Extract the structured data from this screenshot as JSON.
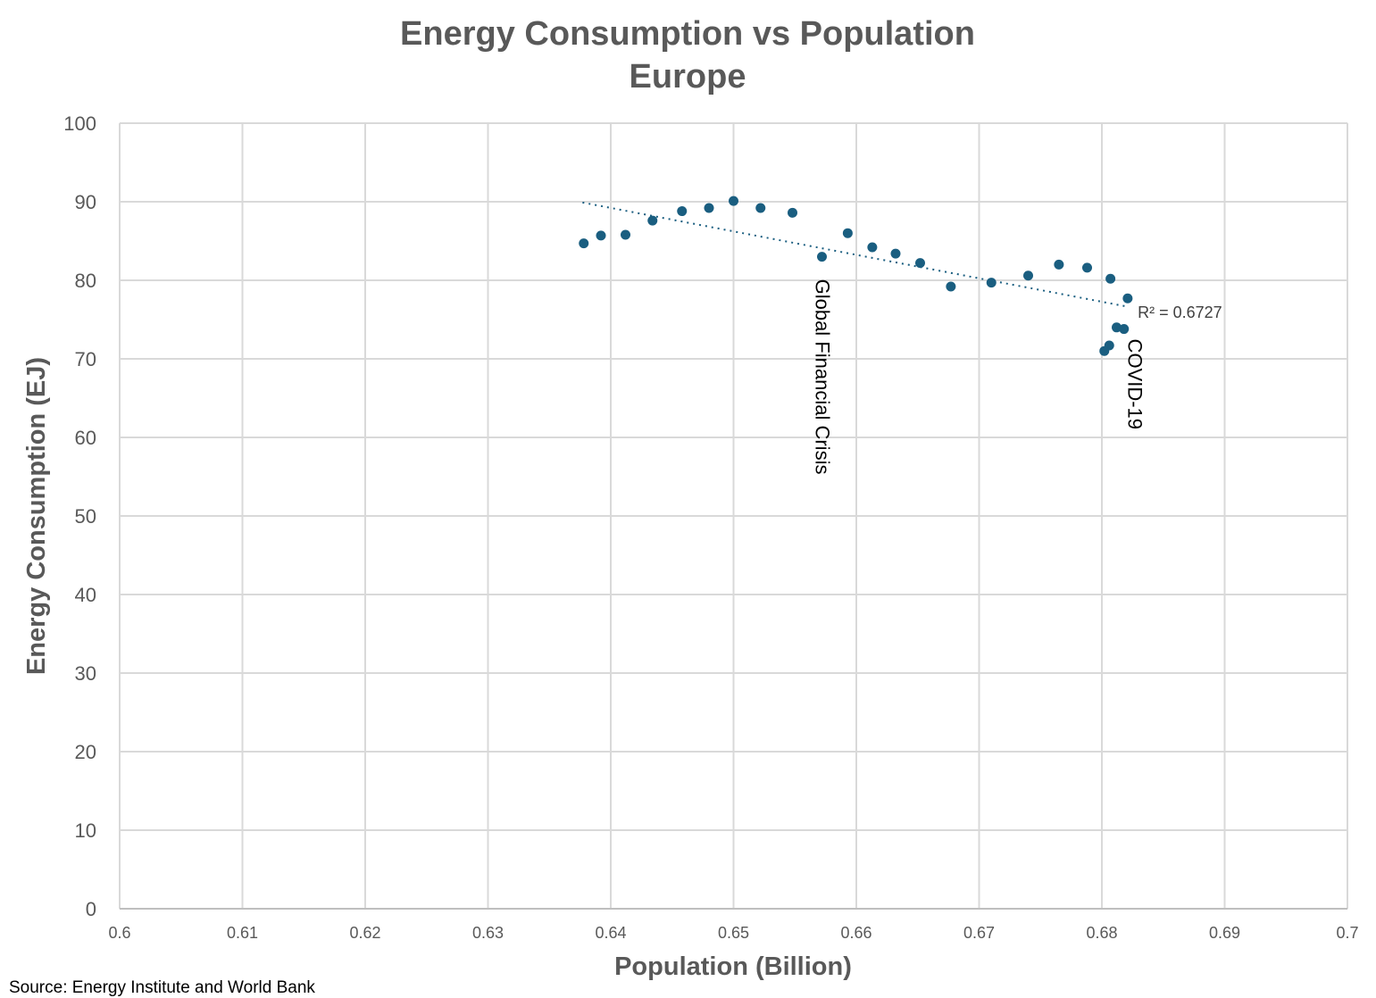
{
  "chart_data": {
    "type": "scatter",
    "title": [
      "Energy Consumption vs Population",
      "Europe"
    ],
    "xlabel": "Population (Billion)",
    "ylabel": "Energy Consumption (EJ)",
    "xlim": [
      0.6,
      0.7
    ],
    "ylim": [
      0,
      100
    ],
    "xticks": [
      "0.6",
      "0.61",
      "0.62",
      "0.63",
      "0.64",
      "0.65",
      "0.66",
      "0.67",
      "0.68",
      "0.69",
      "0.7"
    ],
    "yticks": [
      "0",
      "10",
      "20",
      "30",
      "40",
      "50",
      "60",
      "70",
      "80",
      "90",
      "100"
    ],
    "grid": true,
    "marker_color": "#1a5e80",
    "points": [
      [
        0.6378,
        84.7
      ],
      [
        0.6392,
        85.7
      ],
      [
        0.6412,
        85.8
      ],
      [
        0.6434,
        87.6
      ],
      [
        0.6458,
        88.8
      ],
      [
        0.648,
        89.2
      ],
      [
        0.65,
        90.1
      ],
      [
        0.6522,
        89.2
      ],
      [
        0.6548,
        88.6
      ],
      [
        0.6572,
        83.0
      ],
      [
        0.6593,
        86.0
      ],
      [
        0.6613,
        84.2
      ],
      [
        0.6632,
        83.4
      ],
      [
        0.6652,
        82.2
      ],
      [
        0.6677,
        79.2
      ],
      [
        0.671,
        79.7
      ],
      [
        0.674,
        80.6
      ],
      [
        0.6765,
        82.0
      ],
      [
        0.6788,
        81.6
      ],
      [
        0.6807,
        80.2
      ],
      [
        0.6821,
        77.7
      ],
      [
        0.6812,
        74.0
      ],
      [
        0.6818,
        73.8
      ],
      [
        0.6806,
        71.7
      ],
      [
        0.6802,
        71.0
      ]
    ],
    "trendline": {
      "type": "linear",
      "from": [
        0.6377,
        89.9
      ],
      "to": [
        0.6819,
        76.7
      ],
      "r2_label": "R² = 0.6727"
    },
    "annotations": [
      {
        "text": "Global Financial Crisis",
        "x": 0.6572,
        "y": 83.0
      },
      {
        "text": "COVID-19",
        "x": 0.682,
        "y": 73.8
      }
    ],
    "source": "Source: Energy Institute and World Bank"
  }
}
